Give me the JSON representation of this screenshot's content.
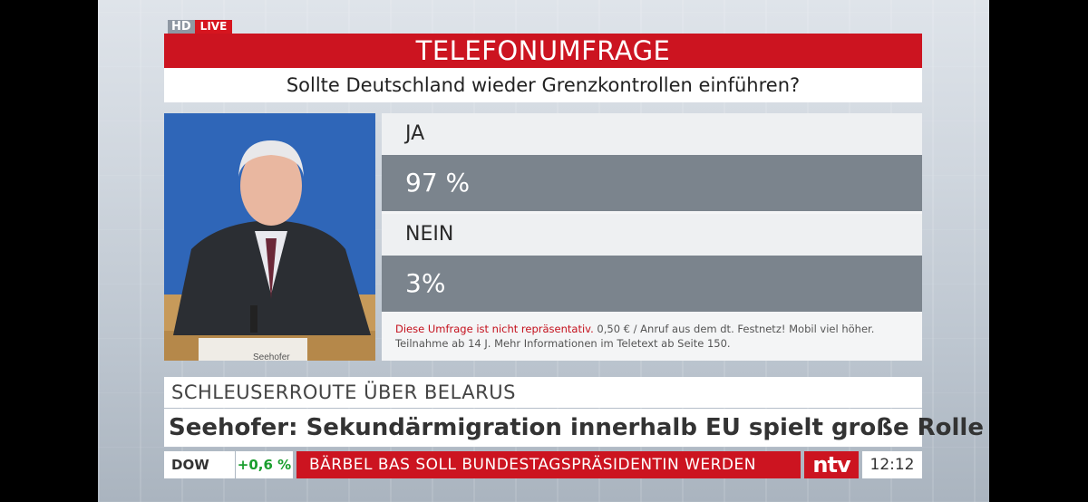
{
  "badge": {
    "hd": "HD",
    "live": "LIVE"
  },
  "poll": {
    "title": "TELEFONUMFRAGE",
    "question": "Sollte Deutschland wieder Grenzkontrollen einführen?",
    "answers": [
      {
        "label": "JA",
        "percent_text": "97 %",
        "value": 97
      },
      {
        "label": "NEIN",
        "percent_text": "3%",
        "value": 3
      }
    ],
    "disclaimer_red": "Diese Umfrage ist nicht repräsentativ.",
    "disclaimer_rest": " 0,50 € / Anruf aus dem dt. Festnetz! Mobil viel höher.",
    "disclaimer_line2": "Teilnahme ab 14 J. Mehr Informationen im Teletext ab Seite 150."
  },
  "video": {
    "nameplate": "Seehofer"
  },
  "lower_third": {
    "topic": "SCHLEUSERROUTE ÜBER BELARUS",
    "headline": "Seehofer: Sekundärmigration innerhalb EU spielt große Rolle"
  },
  "ticker": {
    "index_name": "DOW",
    "index_change": "+0,6 %",
    "news": "BÄRBEL BAS SOLL BUNDESTAGSPRÄSIDENTIN WERDEN",
    "logo": "ntv",
    "time": "12:12"
  },
  "colors": {
    "brand_red": "#cc1420",
    "bar_gray": "#7b848d",
    "positive_green": "#1a9e2e"
  }
}
